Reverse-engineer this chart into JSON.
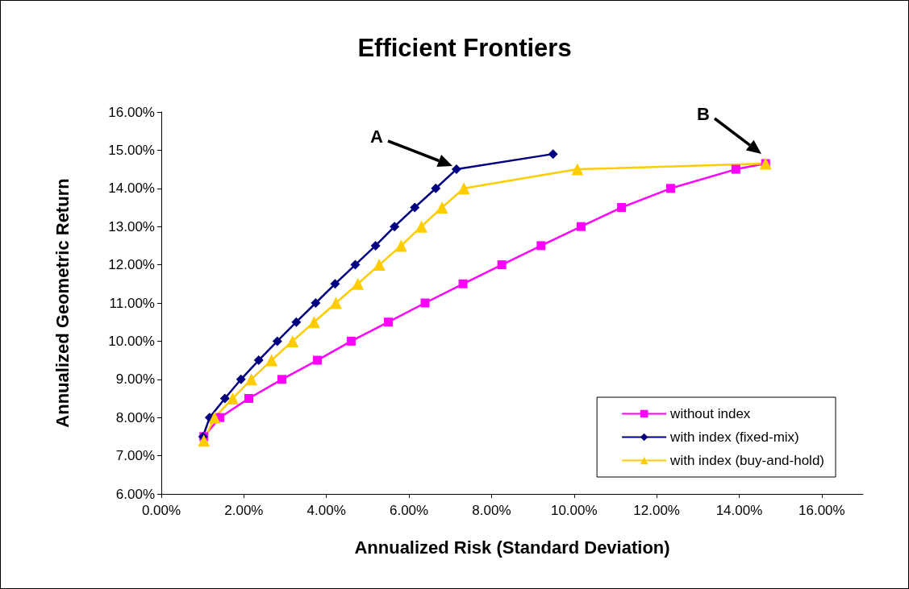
{
  "chart_data": {
    "type": "line",
    "title": "Efficient Frontiers",
    "xlabel": "Annualized Risk (Standard Deviation)",
    "ylabel": "Annualized Geometric Return",
    "xlim": [
      0,
      17
    ],
    "xticks": [
      {
        "value": 0,
        "label": "0.00%"
      },
      {
        "value": 2,
        "label": "2.00%"
      },
      {
        "value": 4,
        "label": "4.00%"
      },
      {
        "value": 6,
        "label": "6.00%"
      },
      {
        "value": 8,
        "label": "8.00%"
      },
      {
        "value": 10,
        "label": "10.00%"
      },
      {
        "value": 12,
        "label": "12.00%"
      },
      {
        "value": 14,
        "label": "14.00%"
      },
      {
        "value": 16,
        "label": "16.00%"
      }
    ],
    "ylim": [
      6,
      16
    ],
    "yticks": [
      {
        "value": 6,
        "label": "6.00%"
      },
      {
        "value": 7,
        "label": "7.00%"
      },
      {
        "value": 8,
        "label": "8.00%"
      },
      {
        "value": 9,
        "label": "9.00%"
      },
      {
        "value": 10,
        "label": "10.00%"
      },
      {
        "value": 11,
        "label": "11.00%"
      },
      {
        "value": 12,
        "label": "12.00%"
      },
      {
        "value": 13,
        "label": "13.00%"
      },
      {
        "value": 14,
        "label": "14.00%"
      },
      {
        "value": 15,
        "label": "15.00%"
      },
      {
        "value": 16,
        "label": "16.00%"
      }
    ],
    "grid": false,
    "legend": "bottom right",
    "line_style": "solid",
    "series": [
      {
        "name": "without index",
        "color": "#ff00ff",
        "marker": "square",
        "x": [
          1.03,
          1.42,
          2.12,
          2.92,
          3.78,
          4.6,
          5.5,
          6.39,
          7.31,
          8.25,
          9.2,
          10.17,
          11.15,
          12.34,
          13.92,
          14.64
        ],
        "values": [
          7.5,
          8,
          8.5,
          9,
          9.5,
          10,
          10.5,
          11,
          11.5,
          12,
          12.5,
          13,
          13.5,
          14,
          14.5,
          14.65
        ]
      },
      {
        "name": "with index (fixed-mix)",
        "color": "#000080",
        "marker": "diamond",
        "x": [
          1.01,
          1.17,
          1.54,
          1.93,
          2.36,
          2.81,
          3.27,
          3.74,
          4.21,
          4.7,
          5.19,
          5.65,
          6.14,
          6.65,
          7.15,
          9.49
        ],
        "values": [
          7.5,
          8,
          8.5,
          9,
          9.5,
          10,
          10.5,
          11,
          11.5,
          12,
          12.5,
          13,
          13.5,
          14,
          14.5,
          14.9
        ]
      },
      {
        "name": "with index (buy-and-hold)",
        "color": "#ffcc00",
        "marker": "triangle",
        "x": [
          1.03,
          1.29,
          1.73,
          2.18,
          2.67,
          3.18,
          3.7,
          4.23,
          4.76,
          5.28,
          5.81,
          6.3,
          6.8,
          7.33,
          10.08,
          14.64
        ],
        "values": [
          7.4,
          8,
          8.5,
          9,
          9.5,
          10,
          10.5,
          11,
          11.5,
          12,
          12.5,
          13,
          13.5,
          14,
          14.5,
          14.65
        ]
      }
    ],
    "annotations": [
      "A",
      "B"
    ]
  }
}
